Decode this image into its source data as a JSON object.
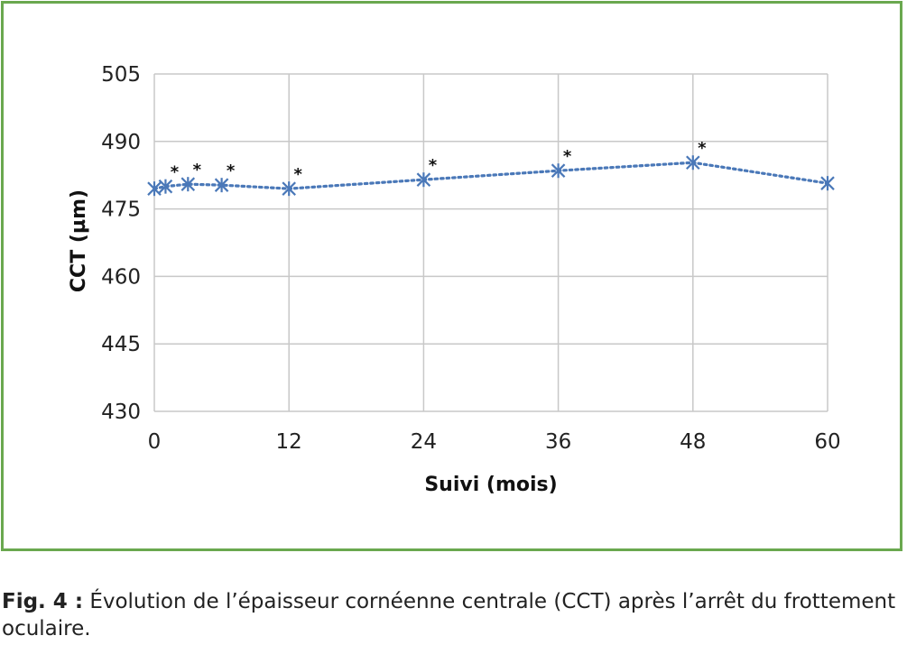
{
  "chart_data": {
    "type": "line",
    "xlabel": "Suivi (mois)",
    "ylabel": "CCT (µm)",
    "xlim": [
      0,
      60
    ],
    "ylim": [
      430,
      505
    ],
    "xticks": [
      0,
      12,
      24,
      36,
      48,
      60
    ],
    "yticks": [
      430,
      445,
      460,
      475,
      490,
      505
    ],
    "grid": true,
    "series": [
      {
        "x": [
          0,
          1,
          3,
          6,
          12,
          24,
          36,
          48,
          60
        ],
        "y": [
          479.5,
          480.0,
          480.5,
          480.3,
          479.5,
          481.5,
          483.5,
          485.3,
          480.7
        ],
        "significant": [
          false,
          true,
          true,
          true,
          true,
          true,
          true,
          true,
          false
        ],
        "color": "#4a78b8"
      }
    ],
    "annotation_marker": "*"
  },
  "caption": {
    "label": "Fig. 4 :",
    "text": " Évolution de l’épaisseur cornéenne centrale (CCT) après l’arrêt du frottement oculaire."
  }
}
